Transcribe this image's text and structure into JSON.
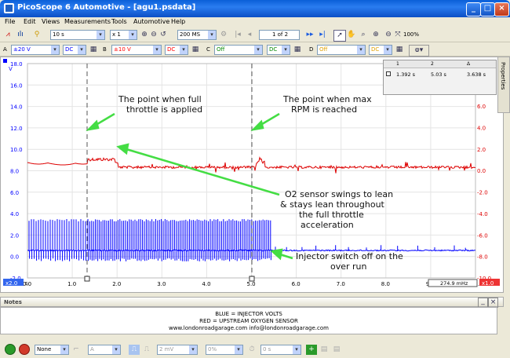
{
  "window": {
    "title": "PicoScope 6 Automotive - [agu1.psdata]"
  },
  "menu": [
    "File",
    "Edit",
    "Views",
    "Measurements",
    "Tools",
    "Automotive",
    "Help"
  ],
  "toolbar1": {
    "timebase": "10 s",
    "multiplier": "x 1",
    "samples": "200 MS",
    "buffer": "1 of 2",
    "zoom": "100%"
  },
  "channels": [
    {
      "letter": "A",
      "range": "±20 V",
      "coupling": "DC",
      "color": "#0000ff"
    },
    {
      "letter": "B",
      "range": "±10 V",
      "coupling": "DC",
      "color": "#ff0000"
    },
    {
      "letter": "C",
      "range": "Off",
      "coupling": "DC",
      "color": "#008800"
    },
    {
      "letter": "D",
      "range": "Off",
      "coupling": "DC",
      "color": "#e0a000"
    }
  ],
  "scope": {
    "left_axis": {
      "unit": "V",
      "ticks": [
        "18.0",
        "16.0",
        "14.0",
        "12.0",
        "10.0",
        "8.0",
        "6.0",
        "4.0",
        "2.0",
        "0.0",
        "-2.0"
      ],
      "badge": "x2.0"
    },
    "right_axis": {
      "ticks": [
        "6.0",
        "4.0",
        "2.0",
        "0.0",
        "-2.0",
        "-4.0",
        "-6.0",
        "-8.0",
        "-10.0"
      ],
      "badge": "x1.0"
    },
    "x_axis": {
      "unit": "s",
      "ticks": [
        "0.0",
        "1.0",
        "2.0",
        "3.0",
        "4.0",
        "5.0",
        "6.0",
        "7.0",
        "8.0",
        "9.0",
        "10.0"
      ]
    },
    "ruler_readout": "274.9 mHz",
    "rulers_table": {
      "headers": [
        "1",
        "2",
        "Δ"
      ],
      "values": [
        "1.392 s",
        "5.03 s",
        "3.638 s"
      ]
    },
    "annotations": {
      "full_throttle": [
        "The point when full",
        "throttle is applied"
      ],
      "max_rpm": [
        "The point when max",
        "RPM is reached"
      ],
      "o2_sensor": [
        "O2 sensor swings to lean",
        "& stays lean throughout",
        "the full throttle",
        "acceleration"
      ],
      "injector": [
        "Injector switch off on the",
        "over run"
      ]
    },
    "colors": {
      "blue": "#0000ff",
      "red": "#dd0000",
      "arrow": "#44dd44"
    }
  },
  "properties_tab": "Properties",
  "notes": {
    "title": "Notes",
    "lines": [
      "BLUE = INJECTOR VOLTS",
      "RED = UPSTREAM OXYGEN SENSOR",
      "www.londonroadgarage.com   info@londonroadgarage.com"
    ]
  },
  "bottombar": {
    "trigger_mode": "None",
    "channel": "A",
    "level": "2 mV",
    "percent": "0%",
    "delay": "0 s"
  }
}
